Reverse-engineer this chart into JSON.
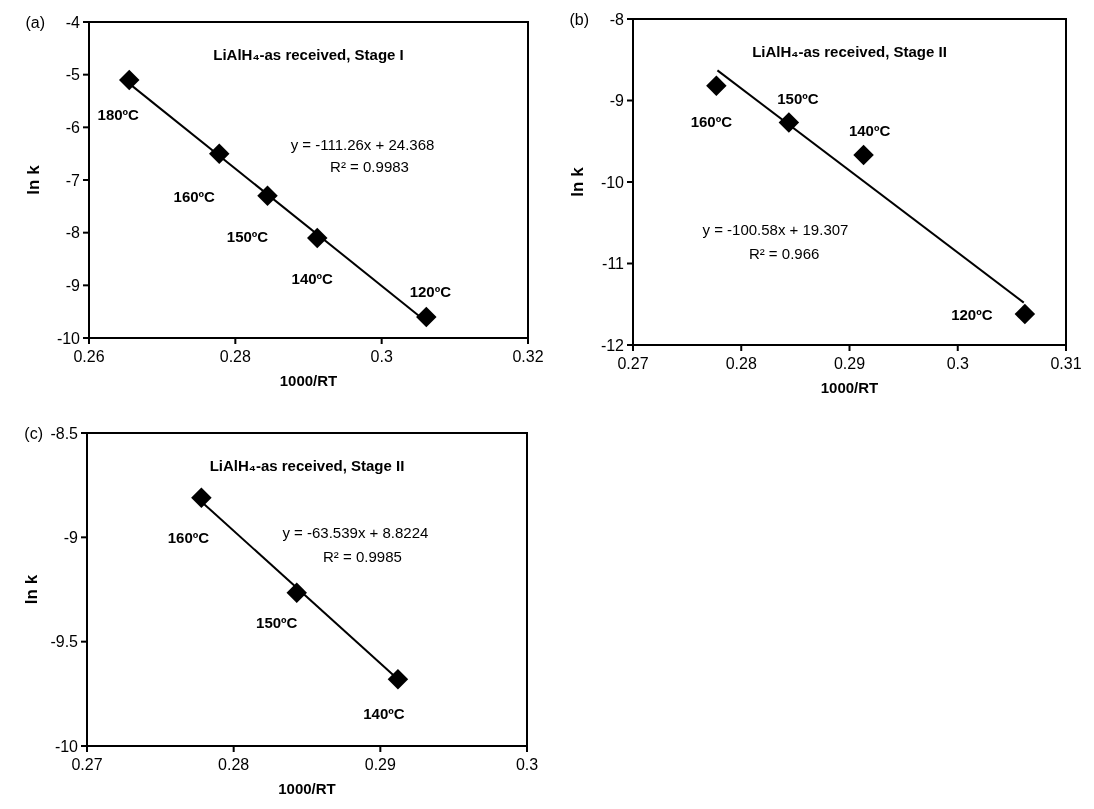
{
  "chart_data": [
    {
      "type": "scatter",
      "title": "LiAlH₄-as received, Stage I",
      "xlabel": "1000/RT",
      "ylabel": "ln k",
      "marker": "diamond",
      "xlim": [
        0.26,
        0.32
      ],
      "xticks": [
        0.26,
        0.28,
        0.3,
        0.32
      ],
      "ylim": [
        -10,
        -4
      ],
      "yticks": [
        -10,
        -9,
        -8,
        -7,
        -6,
        -5,
        -4
      ],
      "series": [
        {
          "color": "#000000",
          "x": [
            0.2655,
            0.2778,
            0.2844,
            0.2912,
            0.3061
          ],
          "values": [
            -5.1,
            -6.5,
            -7.3,
            -8.1,
            -9.6
          ]
        },
        {
          "type": "line",
          "color": "#000000",
          "line_style": "solid",
          "marker": "none",
          "x": [
            0.2655,
            0.3061
          ],
          "values": [
            -5.17,
            -9.69
          ]
        }
      ],
      "annotations": [
        {
          "text": "180ºC",
          "x": 0.2655,
          "y": -5.1
        },
        {
          "text": "160ºC",
          "x": 0.2778,
          "y": -6.5
        },
        {
          "text": "150ºC",
          "x": 0.2844,
          "y": -7.3
        },
        {
          "text": "140ºC",
          "x": 0.2912,
          "y": -8.1
        },
        {
          "text": "120ºC",
          "x": 0.3061,
          "y": -9.6
        },
        "y = -111.26x + 24.368",
        "R² = 0.9983",
        "(a)"
      ]
    },
    {
      "type": "scatter",
      "title": "LiAlH₄-as received, Stage II",
      "xlabel": "1000/RT",
      "ylabel": "ln k",
      "marker": "diamond",
      "xlim": [
        0.27,
        0.31
      ],
      "xticks": [
        0.27,
        0.28,
        0.29,
        0.3,
        0.31
      ],
      "ylim": [
        -12,
        -8
      ],
      "yticks": [
        -12,
        -11,
        -10,
        -9,
        -8
      ],
      "series": [
        {
          "color": "#000000",
          "x": [
            0.2777,
            0.2844,
            0.2913,
            0.3062
          ],
          "values": [
            -8.82,
            -9.27,
            -9.67,
            -11.62
          ]
        },
        {
          "type": "line",
          "color": "#000000",
          "line_style": "solid",
          "marker": "none",
          "x": [
            0.2778,
            0.3061
          ],
          "values": [
            -8.63,
            -11.48
          ]
        }
      ],
      "annotations": [
        {
          "text": "160ºC",
          "x": 0.2777,
          "y": -8.82
        },
        {
          "text": "150ºC",
          "x": 0.2844,
          "y": -9.27
        },
        {
          "text": "140ºC",
          "x": 0.2913,
          "y": -9.67
        },
        {
          "text": "120ºC",
          "x": 0.3062,
          "y": -11.62
        },
        "y = -100.58x + 19.307",
        "R² = 0.966",
        "(b)"
      ]
    },
    {
      "type": "scatter",
      "title": "LiAlH₄-as received, Stage II",
      "xlabel": "1000/RT",
      "ylabel": "ln k",
      "marker": "diamond",
      "xlim": [
        0.27,
        0.3
      ],
      "xticks": [
        0.27,
        0.28,
        0.29,
        0.3
      ],
      "ylim": [
        -10,
        -8.5
      ],
      "yticks": [
        -10,
        -9.5,
        -9,
        -8.5
      ],
      "series": [
        {
          "color": "#000000",
          "x": [
            0.2778,
            0.2843,
            0.2912
          ],
          "values": [
            -8.81,
            -9.265,
            -9.68
          ]
        },
        {
          "type": "line",
          "color": "#000000",
          "line_style": "solid",
          "marker": "none",
          "x": [
            0.2778,
            0.2912
          ],
          "values": [
            -8.829,
            -9.68
          ]
        }
      ],
      "annotations": [
        {
          "text": "160ºC",
          "x": 0.2778,
          "y": -8.81
        },
        {
          "text": "150ºC",
          "x": 0.2843,
          "y": -9.265
        },
        {
          "text": "140ºC",
          "x": 0.2912,
          "y": -9.68
        },
        "y = -63.539x + 8.8224",
        "R² = 0.9985",
        "(c)"
      ]
    }
  ]
}
